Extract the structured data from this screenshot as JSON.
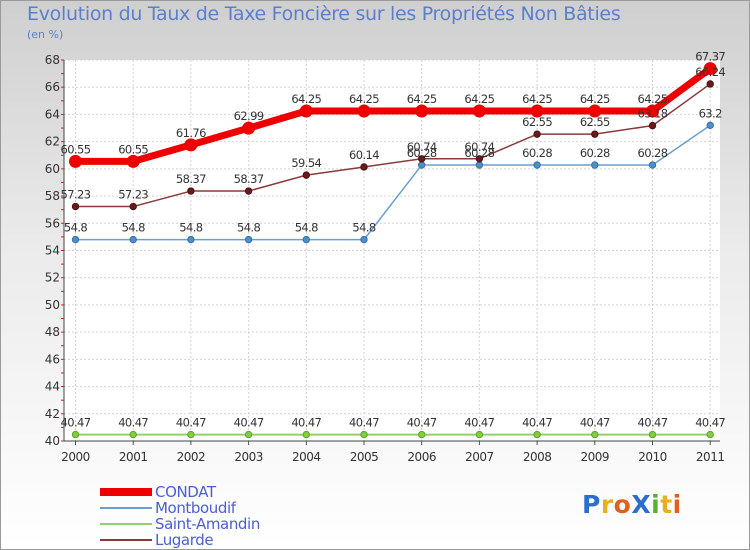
{
  "title": "Evolution du Taux de Taxe Foncière sur les Propriétés Non Bâties",
  "unit_label": "(en %)",
  "logo": {
    "text": "ProXiti",
    "letters": [
      {
        "ch": "P",
        "color": "#2a6fd0"
      },
      {
        "ch": "r",
        "color": "#e8b020"
      },
      {
        "ch": "o",
        "color": "#e06020"
      },
      {
        "ch": "X",
        "color": "#2a6fd0"
      },
      {
        "ch": "i",
        "color": "#58b030"
      },
      {
        "ch": "t",
        "color": "#e8b020"
      },
      {
        "ch": "i",
        "color": "#e06020"
      }
    ]
  },
  "chart_data": {
    "type": "line",
    "title": "Evolution du Taux de Taxe Foncière sur les Propriétés Non Bâties",
    "xlabel": "",
    "ylabel": "(en %)",
    "ylim": [
      40,
      68
    ],
    "yticks": [
      40,
      42,
      44,
      46,
      48,
      50,
      52,
      54,
      56,
      58,
      60,
      62,
      64,
      66,
      68
    ],
    "grid": true,
    "categories": [
      "2000",
      "2001",
      "2002",
      "2003",
      "2004",
      "2005",
      "2006",
      "2007",
      "2008",
      "2009",
      "2010",
      "2011"
    ],
    "series": [
      {
        "name": "CONDAT",
        "color": "#ee0000",
        "values": [
          60.55,
          60.55,
          61.76,
          62.99,
          64.25,
          64.25,
          64.25,
          64.25,
          64.25,
          64.25,
          64.25,
          67.37
        ],
        "labels": [
          "60.55",
          "60.55",
          "61.76",
          "62.99",
          "64.25",
          "64.25",
          "64.25",
          "64.25",
          "64.25",
          "64.25",
          "64.25",
          "67.37"
        ]
      },
      {
        "name": "Montboudif",
        "color": "#6a9fd0",
        "values": [
          54.8,
          54.8,
          54.8,
          54.8,
          54.8,
          54.8,
          60.28,
          60.28,
          60.28,
          60.28,
          60.28,
          63.2
        ],
        "labels": [
          "54.8",
          "54.8",
          "54.8",
          "54.8",
          "54.8",
          "54.8",
          "60.28",
          "60.28",
          "60.28",
          "60.28",
          "60.28",
          "63.2"
        ]
      },
      {
        "name": "Saint-Amandin",
        "color": "#90d070",
        "values": [
          40.47,
          40.47,
          40.47,
          40.47,
          40.47,
          40.47,
          40.47,
          40.47,
          40.47,
          40.47,
          40.47,
          40.47
        ],
        "labels": [
          "40.47",
          "40.47",
          "40.47",
          "40.47",
          "40.47",
          "40.47",
          "40.47",
          "40.47",
          "40.47",
          "40.47",
          "40.47",
          "40.47"
        ]
      },
      {
        "name": "Lugarde",
        "color": "#8a3a3a",
        "values": [
          57.23,
          57.23,
          58.37,
          58.37,
          59.54,
          60.14,
          60.74,
          60.74,
          62.55,
          62.55,
          63.18,
          66.24
        ],
        "labels": [
          "57.23",
          "57.23",
          "58.37",
          "58.37",
          "59.54",
          "60.14",
          "60.74",
          "60.74",
          "62.55",
          "62.55",
          "63.18",
          "66.24"
        ]
      }
    ]
  }
}
